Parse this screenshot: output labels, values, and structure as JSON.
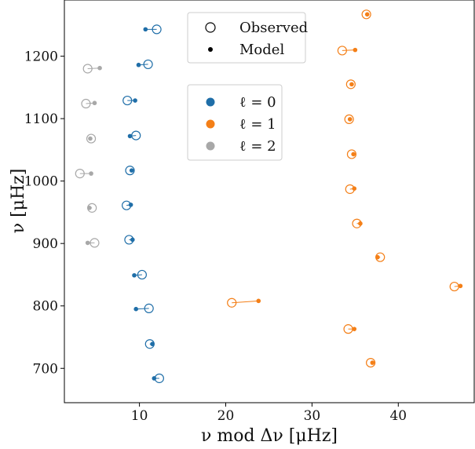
{
  "chart_data": {
    "type": "scatter",
    "xlabel": "ν mod Δν [μHz]",
    "ylabel": "ν [μHz]",
    "xlim": [
      1.3,
      48.8
    ],
    "ylim": [
      645,
      1290
    ],
    "xticks": [
      10,
      20,
      30,
      40
    ],
    "yticks": [
      700,
      800,
      900,
      1000,
      1100,
      1200
    ],
    "grid": false,
    "marker_legend": {
      "placement": "top-center",
      "entries": [
        {
          "label": "Observed",
          "marker": "open-circle"
        },
        {
          "label": "Model",
          "marker": "dot"
        }
      ]
    },
    "degree_legend": {
      "placement": "upper-center",
      "entries": [
        {
          "label": "ℓ = 0",
          "series": 0
        },
        {
          "label": "ℓ = 1",
          "series": 1
        },
        {
          "label": "ℓ = 2",
          "series": 2
        }
      ]
    },
    "series": [
      {
        "color": "#1f6ea8",
        "points": [
          {
            "obs": [
              12.3,
              684
            ],
            "model": [
              11.7,
              684
            ]
          },
          {
            "obs": [
              11.2,
              739
            ],
            "model": [
              11.5,
              739
            ]
          },
          {
            "obs": [
              11.1,
              796
            ],
            "model": [
              9.6,
              795
            ]
          },
          {
            "obs": [
              10.3,
              850
            ],
            "model": [
              9.4,
              849
            ]
          },
          {
            "obs": [
              8.8,
              906
            ],
            "model": [
              9.2,
              906
            ]
          },
          {
            "obs": [
              8.5,
              961
            ],
            "model": [
              9.0,
              962
            ]
          },
          {
            "obs": [
              8.9,
              1017
            ],
            "model": [
              9.1,
              1017
            ]
          },
          {
            "obs": [
              9.6,
              1073
            ],
            "model": [
              8.9,
              1072
            ]
          },
          {
            "obs": [
              8.6,
              1129
            ],
            "model": [
              9.5,
              1129
            ]
          },
          {
            "obs": [
              11.0,
              1187
            ],
            "model": [
              9.9,
              1186
            ]
          },
          {
            "obs": [
              12.0,
              1243
            ],
            "model": [
              10.7,
              1243
            ]
          }
        ]
      },
      {
        "color": "#f47f17",
        "points": [
          {
            "obs": [
              36.8,
              709
            ],
            "model": [
              37.0,
              709
            ]
          },
          {
            "obs": [
              34.2,
              763
            ],
            "model": [
              34.9,
              763
            ]
          },
          {
            "obs": [
              20.7,
              805
            ],
            "model": [
              23.8,
              808
            ]
          },
          {
            "obs": [
              46.5,
              831
            ],
            "model": [
              47.2,
              832
            ]
          },
          {
            "obs": [
              37.9,
              878
            ],
            "model": [
              37.6,
              878
            ]
          },
          {
            "obs": [
              35.2,
              932
            ],
            "model": [
              35.6,
              932
            ]
          },
          {
            "obs": [
              34.4,
              987
            ],
            "model": [
              34.9,
              988
            ]
          },
          {
            "obs": [
              34.6,
              1043
            ],
            "model": [
              34.8,
              1043
            ]
          },
          {
            "obs": [
              34.3,
              1099
            ],
            "model": [
              34.4,
              1099
            ]
          },
          {
            "obs": [
              34.5,
              1155
            ],
            "model": [
              34.6,
              1155
            ]
          },
          {
            "obs": [
              33.5,
              1209
            ],
            "model": [
              35.0,
              1210
            ]
          },
          {
            "obs": [
              36.3,
              1267
            ],
            "model": [
              36.4,
              1267
            ]
          }
        ]
      },
      {
        "color": "#a8a8a8",
        "points": [
          {
            "obs": [
              4.8,
              901
            ],
            "model": [
              4.0,
              901
            ]
          },
          {
            "obs": [
              4.5,
              957
            ],
            "model": [
              4.2,
              957
            ]
          },
          {
            "obs": [
              3.1,
              1012
            ],
            "model": [
              4.4,
              1012
            ]
          },
          {
            "obs": [
              4.4,
              1068
            ],
            "model": [
              4.3,
              1068
            ]
          },
          {
            "obs": [
              3.8,
              1124
            ],
            "model": [
              4.8,
              1125
            ]
          },
          {
            "obs": [
              4.0,
              1180
            ],
            "model": [
              5.4,
              1181
            ]
          }
        ]
      }
    ]
  }
}
